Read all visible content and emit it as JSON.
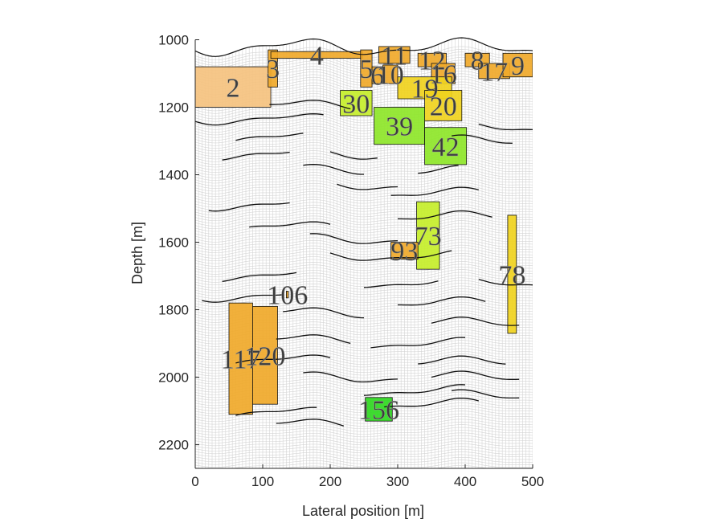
{
  "chart_data": {
    "type": "scatter",
    "xlabel": "Lateral position [m]",
    "ylabel": "Depth [m]",
    "xlim": [
      0,
      500
    ],
    "ylim": [
      1000,
      2270
    ],
    "y_reversed": true,
    "grid_mesh": true,
    "x_ticks": [
      0,
      100,
      200,
      300,
      400,
      500
    ],
    "y_ticks": [
      1000,
      1200,
      1400,
      1600,
      1800,
      2000,
      2200
    ],
    "colors": {
      "light_orange": "#f5c27f",
      "orange": "#f0a92a",
      "yellow": "#f0d21e",
      "yellow_green": "#c6ee2a",
      "light_green": "#8ee629",
      "green": "#2fd81f",
      "fault_line": "#111111",
      "mesh_line": "#d4d4d4"
    },
    "regions": [
      {
        "label": "2",
        "x": [
          0,
          112
        ],
        "y": [
          1080,
          1200
        ],
        "color": "light_orange"
      },
      {
        "label": "3",
        "x": [
          108,
          122
        ],
        "y": [
          1030,
          1140
        ],
        "color": "orange"
      },
      {
        "label": "4",
        "x": [
          112,
          248
        ],
        "y": [
          1035,
          1055
        ],
        "color": "orange"
      },
      {
        "label": "5",
        "x": [
          245,
          262
        ],
        "y": [
          1030,
          1140
        ],
        "color": "orange"
      },
      {
        "label": "6",
        "x": [
          262,
          278
        ],
        "y": [
          1080,
          1130
        ],
        "color": "orange"
      },
      {
        "label": "10",
        "x": [
          278,
          300
        ],
        "y": [
          1075,
          1130
        ],
        "color": "orange"
      },
      {
        "label": "11",
        "x": [
          272,
          318
        ],
        "y": [
          1020,
          1070
        ],
        "color": "orange"
      },
      {
        "label": "12",
        "x": [
          330,
          372
        ],
        "y": [
          1040,
          1080
        ],
        "color": "orange"
      },
      {
        "label": "16",
        "x": [
          350,
          385
        ],
        "y": [
          1070,
          1130
        ],
        "color": "orange"
      },
      {
        "label": "8",
        "x": [
          400,
          436
        ],
        "y": [
          1040,
          1080
        ],
        "color": "orange"
      },
      {
        "label": "17",
        "x": [
          420,
          466
        ],
        "y": [
          1070,
          1115
        ],
        "color": "orange"
      },
      {
        "label": "9",
        "x": [
          456,
          500
        ],
        "y": [
          1040,
          1110
        ],
        "color": "orange"
      },
      {
        "label": "19",
        "x": [
          300,
          380
        ],
        "y": [
          1110,
          1175
        ],
        "color": "yellow"
      },
      {
        "label": "20",
        "x": [
          340,
          395
        ],
        "y": [
          1150,
          1240
        ],
        "color": "yellow"
      },
      {
        "label": "30",
        "x": [
          215,
          262
        ],
        "y": [
          1150,
          1225
        ],
        "color": "yellow_green"
      },
      {
        "label": "39",
        "x": [
          265,
          340
        ],
        "y": [
          1200,
          1310
        ],
        "color": "light_green"
      },
      {
        "label": "42",
        "x": [
          340,
          402
        ],
        "y": [
          1260,
          1370
        ],
        "color": "light_green"
      },
      {
        "label": "73",
        "x": [
          328,
          362
        ],
        "y": [
          1480,
          1680
        ],
        "color": "yellow_green"
      },
      {
        "label": "93",
        "x": [
          290,
          330
        ],
        "y": [
          1600,
          1650
        ],
        "color": "orange"
      },
      {
        "label": "78",
        "x": [
          463,
          476
        ],
        "y": [
          1520,
          1870
        ],
        "color": "yellow"
      },
      {
        "label": "106",
        "x": [
          135,
          138
        ],
        "y": [
          1745,
          1765
        ],
        "color": "orange"
      },
      {
        "label": "117",
        "x": [
          50,
          85
        ],
        "y": [
          1780,
          2110
        ],
        "color": "orange"
      },
      {
        "label": "120",
        "x": [
          85,
          122
        ],
        "y": [
          1790,
          2080
        ],
        "color": "orange"
      },
      {
        "label": "156",
        "x": [
          252,
          292
        ],
        "y": [
          2060,
          2130
        ],
        "color": "green"
      }
    ]
  }
}
